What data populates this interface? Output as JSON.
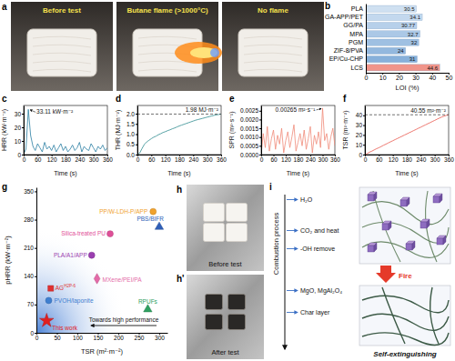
{
  "panel_labels": [
    "a",
    "b",
    "c",
    "d",
    "e",
    "f",
    "g",
    "h",
    "h'",
    "i"
  ],
  "photos": {
    "a": [
      "Before test",
      "Butane flame (>1000°C)",
      "No flame"
    ],
    "h": "Before test",
    "h_prime": "After test"
  },
  "diagram": {
    "side_label": "Combustion process",
    "steps": [
      "H₂O",
      "CO₂ and heat",
      "-OH remove",
      "MgO, MgAl₂O₄",
      "Char layer"
    ],
    "fire": "Fire",
    "result": "Self-extinguishing"
  },
  "chart_data": [
    {
      "type": "bar",
      "orientation": "horizontal",
      "categories": [
        "PLA",
        "GA-APP/PET",
        "GG/PA",
        "MPA",
        "PGM",
        "ZIF-8/PVA",
        "EP/Cu-CHP",
        "LCS"
      ],
      "values": [
        30.5,
        34.1,
        30.77,
        32.7,
        32,
        24,
        31,
        44.6
      ],
      "colors": [
        "#cfe0f1",
        "#c3d8ee",
        "#b7d0ea",
        "#abc8e6",
        "#9fc0e2",
        "#93b8de",
        "#87b0da",
        "#f0948a"
      ],
      "xlabel": "LOI (%)",
      "xlim": [
        0,
        50
      ],
      "xticks": [
        0,
        10,
        20,
        30,
        40,
        50
      ],
      "data_labels": true
    },
    {
      "type": "line",
      "xlabel": "Time (s)",
      "ylabel": "HRR (kW·m⁻²)",
      "color": "#2b7fa3",
      "annotation": "33.11 kW·m⁻²",
      "x": [
        0,
        10,
        20,
        30,
        40,
        50,
        60,
        70,
        80,
        90,
        100,
        110,
        120,
        130,
        140,
        150,
        160,
        170,
        180,
        190,
        200,
        210,
        220,
        230,
        240,
        250,
        260,
        270,
        280,
        290,
        300,
        310,
        320,
        330,
        340,
        350,
        360
      ],
      "values": [
        0.5,
        4,
        33.11,
        14,
        6,
        3,
        8,
        5,
        2,
        9,
        4,
        6,
        3,
        7,
        2,
        5,
        8,
        3,
        6,
        2,
        4,
        7,
        3,
        5,
        9,
        2,
        6,
        4,
        3,
        8,
        5,
        2,
        6,
        4,
        7,
        3,
        5
      ],
      "xlim": [
        0,
        360
      ],
      "xticks": [
        0,
        60,
        120,
        180,
        240,
        300,
        360
      ],
      "ylim": [
        0,
        36
      ],
      "yticks": [
        0,
        10,
        20,
        30
      ]
    },
    {
      "type": "line",
      "xlabel": "Time (s)",
      "ylabel": "THR (MJ·m⁻²)",
      "color": "#2e8b8f",
      "annotation": "1.98 MJ·m⁻²",
      "hline": 1.98,
      "x": [
        0,
        10,
        20,
        30,
        40,
        50,
        60,
        70,
        80,
        90,
        100,
        110,
        120,
        130,
        140,
        150,
        160,
        170,
        180,
        190,
        200,
        210,
        220,
        230,
        240,
        250,
        260,
        270,
        280,
        290,
        300,
        310,
        320,
        330,
        340,
        350,
        360
      ],
      "values": [
        0,
        0.08,
        0.3,
        0.5,
        0.62,
        0.7,
        0.78,
        0.85,
        0.9,
        0.97,
        1.02,
        1.08,
        1.12,
        1.17,
        1.21,
        1.26,
        1.3,
        1.35,
        1.4,
        1.44,
        1.48,
        1.52,
        1.56,
        1.6,
        1.64,
        1.68,
        1.71,
        1.74,
        1.77,
        1.8,
        1.83,
        1.86,
        1.89,
        1.92,
        1.94,
        1.96,
        1.98
      ],
      "xlim": [
        0,
        360
      ],
      "xticks": [
        0,
        60,
        120,
        180,
        240,
        300,
        360
      ],
      "ylim": [
        0,
        2.4
      ],
      "yticks": [
        {
          "value": 0,
          "label": "0.0"
        },
        0.5,
        {
          "value": 1,
          "label": "1.0"
        },
        1.5,
        {
          "value": 2,
          "label": "2.0"
        }
      ]
    },
    {
      "type": "line",
      "xlabel": "Time (s)",
      "ylabel": "SPR (m²·s⁻¹)",
      "color": "#f08a78",
      "annotation": "0.00265 m²·s⁻¹",
      "x": [
        0,
        10,
        20,
        30,
        40,
        50,
        60,
        70,
        80,
        90,
        100,
        110,
        120,
        130,
        140,
        150,
        160,
        170,
        180,
        190,
        200,
        210,
        220,
        230,
        240,
        250,
        260,
        270,
        280,
        290,
        300,
        310,
        320,
        330,
        340,
        350,
        360
      ],
      "values": [
        0,
        0.0012,
        0.0004,
        0.0016,
        0.0002,
        0.0009,
        0.0014,
        0.0003,
        0.0011,
        0.0006,
        0.0015,
        0.0001,
        0.0008,
        0.0013,
        0.0004,
        0.001,
        0.0017,
        0.0002,
        0.0007,
        0.0012,
        0.0005,
        0.0014,
        0.0003,
        0.0009,
        0.0016,
        0.0001,
        0.0011,
        0.0006,
        0.0013,
        0.0004,
        0.00265,
        0.0008,
        0.0012,
        0.0003,
        0.001,
        0.0015,
        0.0005
      ],
      "xlim": [
        0,
        360
      ],
      "xticks": [
        0,
        60,
        120,
        180,
        240,
        300,
        360
      ],
      "ylim": [
        0,
        0.0028
      ],
      "yticks": [
        {
          "value": 0,
          "label": "0.0000"
        },
        0.0005,
        {
          "value": 0.001,
          "label": "0.0010"
        },
        0.0015,
        {
          "value": 0.002,
          "label": "0.0020"
        },
        0.0025
      ]
    },
    {
      "type": "line",
      "xlabel": "Time (s)",
      "ylabel": "TSR (m²·m⁻²)",
      "color": "#e8574c",
      "annotation": "40.55 m²·m⁻²",
      "hline": 40.55,
      "x": [
        0,
        10,
        20,
        30,
        40,
        50,
        60,
        70,
        80,
        90,
        100,
        110,
        120,
        130,
        140,
        150,
        160,
        170,
        180,
        190,
        200,
        210,
        220,
        230,
        240,
        250,
        260,
        270,
        280,
        290,
        300,
        310,
        320,
        330,
        340,
        350,
        360
      ],
      "values": [
        0,
        1,
        2.5,
        3.5,
        4.8,
        6,
        7,
        8.2,
        9.5,
        10.6,
        11.8,
        13,
        14.1,
        15.3,
        16.4,
        17.6,
        18.7,
        19.9,
        21,
        22.2,
        23.3,
        24.5,
        25.6,
        26.8,
        27.9,
        29.1,
        30.2,
        31.4,
        32.5,
        33.7,
        34.8,
        36,
        37.1,
        38.2,
        39.1,
        39.9,
        40.55
      ],
      "xlim": [
        0,
        360
      ],
      "xticks": [
        0,
        60,
        120,
        180,
        240,
        300,
        360
      ],
      "ylim": [
        0,
        50
      ],
      "yticks": [
        0,
        10,
        20,
        30,
        40
      ]
    },
    {
      "type": "scatter",
      "xlabel": "TSR (m²·m⁻²)",
      "ylabel": "pHRR (kW·m⁻²)",
      "annotation": "Towards high performance",
      "xlim": [
        0,
        320
      ],
      "xticks": [
        0,
        50,
        100,
        150,
        200,
        250,
        300
      ],
      "ylim": [
        0,
        360
      ],
      "yticks": [
        0,
        70,
        140,
        210,
        280,
        350
      ],
      "series": [
        {
          "name": "PP/W-LDH-P/APP",
          "color": "#f0a22e",
          "marker": "circle",
          "x": [
            285
          ],
          "values": [
            300
          ]
        },
        {
          "name": "Silica-treated PU",
          "color": "#df4f98",
          "marker": "circle",
          "x": [
            180
          ],
          "values": [
            245
          ]
        },
        {
          "name": "PBS/BIFR",
          "color": "#2f5fb8",
          "marker": "triangle",
          "x": [
            300
          ],
          "values": [
            262
          ]
        },
        {
          "name": "PLA/A1/APP",
          "color": "#9b3fb0",
          "marker": "circle",
          "x": [
            135
          ],
          "values": [
            192
          ]
        },
        {
          "name": "MXene/PEI/PA",
          "color": "#e46aa8",
          "marker": "diamond",
          "x": [
            148
          ],
          "values": [
            134
          ]
        },
        {
          "name": "RPUFs",
          "color": "#2fa060",
          "marker": "triangle",
          "x": [
            272
          ],
          "values": [
            58
          ]
        },
        {
          "name": "AG",
          "superscript": "H2P-6",
          "color": "#e03030",
          "marker": "square",
          "x": [
            35
          ],
          "values": [
            110
          ]
        },
        {
          "name": "PVOH/laponite",
          "color": "#3f7fd0",
          "marker": "circle",
          "x": [
            30
          ],
          "values": [
            80
          ]
        },
        {
          "name": "This work",
          "color": "#e02020",
          "marker": "star",
          "x": [
            25
          ],
          "values": [
            30
          ]
        }
      ]
    }
  ]
}
